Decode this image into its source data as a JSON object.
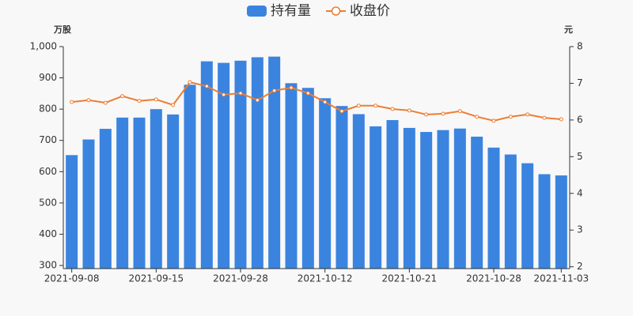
{
  "chart_data": {
    "type": "bar_line",
    "legend_position": "top",
    "categories": [
      "2021-09-08",
      null,
      null,
      null,
      null,
      "2021-09-15",
      null,
      null,
      null,
      null,
      "2021-09-28",
      null,
      null,
      null,
      null,
      "2021-10-12",
      null,
      null,
      null,
      null,
      "2021-10-21",
      null,
      null,
      null,
      null,
      "2021-10-28",
      null,
      null,
      null,
      "2021-11-03"
    ],
    "y_label": "万股",
    "y2_label": "元",
    "series": [
      {
        "name": "持有量",
        "type": "bar",
        "axis": "y",
        "color": "#3a84e0",
        "values": [
          653,
          703,
          737,
          773,
          773,
          800,
          783,
          878,
          953,
          948,
          955,
          966,
          968,
          883,
          868,
          835,
          810,
          784,
          745,
          765,
          740,
          727,
          733,
          738,
          712,
          677,
          655,
          627,
          592,
          588
        ]
      },
      {
        "name": "收盘价",
        "type": "line",
        "axis": "y2",
        "color": "#ed7d31",
        "values": [
          6.49,
          6.54,
          6.47,
          6.65,
          6.52,
          6.56,
          6.41,
          7.03,
          6.92,
          6.69,
          6.73,
          6.54,
          6.8,
          6.88,
          6.73,
          6.49,
          6.24,
          6.39,
          6.39,
          6.3,
          6.26,
          6.15,
          6.17,
          6.24,
          6.09,
          5.98,
          6.09,
          6.15,
          6.06,
          6.02
        ]
      }
    ],
    "ylim": [
      290,
      1000
    ],
    "yticks": [
      300,
      400,
      500,
      600,
      700,
      800,
      900,
      {
        "value": 1000,
        "label": "1,000"
      }
    ],
    "y2lim": [
      1.95,
      8
    ],
    "y2ticks": [
      2,
      3,
      4,
      5,
      6,
      7,
      8
    ]
  }
}
